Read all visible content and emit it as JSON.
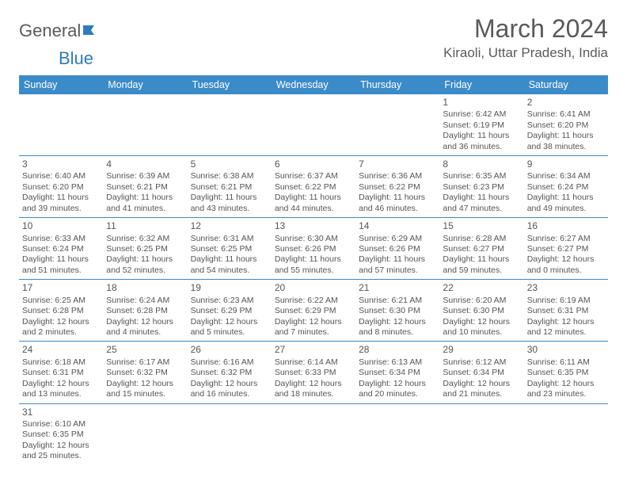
{
  "logo": {
    "text1": "General",
    "text2": "Blue"
  },
  "header": {
    "month": "March 2024",
    "location": "Kiraoli, Uttar Pradesh, India"
  },
  "colors": {
    "header_bg": "#3b8bc9",
    "header_fg": "#ffffff",
    "rule": "#3b8bc9",
    "text": "#555555",
    "logo_blue": "#2f7bbf"
  },
  "days_of_week": [
    "Sunday",
    "Monday",
    "Tuesday",
    "Wednesday",
    "Thursday",
    "Friday",
    "Saturday"
  ],
  "cells": [
    [
      null,
      null,
      null,
      null,
      null,
      {
        "n": "1",
        "sr": "6:42 AM",
        "ss": "6:19 PM",
        "dl": "11 hours and 36 minutes."
      },
      {
        "n": "2",
        "sr": "6:41 AM",
        "ss": "6:20 PM",
        "dl": "11 hours and 38 minutes."
      }
    ],
    [
      {
        "n": "3",
        "sr": "6:40 AM",
        "ss": "6:20 PM",
        "dl": "11 hours and 39 minutes."
      },
      {
        "n": "4",
        "sr": "6:39 AM",
        "ss": "6:21 PM",
        "dl": "11 hours and 41 minutes."
      },
      {
        "n": "5",
        "sr": "6:38 AM",
        "ss": "6:21 PM",
        "dl": "11 hours and 43 minutes."
      },
      {
        "n": "6",
        "sr": "6:37 AM",
        "ss": "6:22 PM",
        "dl": "11 hours and 44 minutes."
      },
      {
        "n": "7",
        "sr": "6:36 AM",
        "ss": "6:22 PM",
        "dl": "11 hours and 46 minutes."
      },
      {
        "n": "8",
        "sr": "6:35 AM",
        "ss": "6:23 PM",
        "dl": "11 hours and 47 minutes."
      },
      {
        "n": "9",
        "sr": "6:34 AM",
        "ss": "6:24 PM",
        "dl": "11 hours and 49 minutes."
      }
    ],
    [
      {
        "n": "10",
        "sr": "6:33 AM",
        "ss": "6:24 PM",
        "dl": "11 hours and 51 minutes."
      },
      {
        "n": "11",
        "sr": "6:32 AM",
        "ss": "6:25 PM",
        "dl": "11 hours and 52 minutes."
      },
      {
        "n": "12",
        "sr": "6:31 AM",
        "ss": "6:25 PM",
        "dl": "11 hours and 54 minutes."
      },
      {
        "n": "13",
        "sr": "6:30 AM",
        "ss": "6:26 PM",
        "dl": "11 hours and 55 minutes."
      },
      {
        "n": "14",
        "sr": "6:29 AM",
        "ss": "6:26 PM",
        "dl": "11 hours and 57 minutes."
      },
      {
        "n": "15",
        "sr": "6:28 AM",
        "ss": "6:27 PM",
        "dl": "11 hours and 59 minutes."
      },
      {
        "n": "16",
        "sr": "6:27 AM",
        "ss": "6:27 PM",
        "dl": "12 hours and 0 minutes."
      }
    ],
    [
      {
        "n": "17",
        "sr": "6:25 AM",
        "ss": "6:28 PM",
        "dl": "12 hours and 2 minutes."
      },
      {
        "n": "18",
        "sr": "6:24 AM",
        "ss": "6:28 PM",
        "dl": "12 hours and 4 minutes."
      },
      {
        "n": "19",
        "sr": "6:23 AM",
        "ss": "6:29 PM",
        "dl": "12 hours and 5 minutes."
      },
      {
        "n": "20",
        "sr": "6:22 AM",
        "ss": "6:29 PM",
        "dl": "12 hours and 7 minutes."
      },
      {
        "n": "21",
        "sr": "6:21 AM",
        "ss": "6:30 PM",
        "dl": "12 hours and 8 minutes."
      },
      {
        "n": "22",
        "sr": "6:20 AM",
        "ss": "6:30 PM",
        "dl": "12 hours and 10 minutes."
      },
      {
        "n": "23",
        "sr": "6:19 AM",
        "ss": "6:31 PM",
        "dl": "12 hours and 12 minutes."
      }
    ],
    [
      {
        "n": "24",
        "sr": "6:18 AM",
        "ss": "6:31 PM",
        "dl": "12 hours and 13 minutes."
      },
      {
        "n": "25",
        "sr": "6:17 AM",
        "ss": "6:32 PM",
        "dl": "12 hours and 15 minutes."
      },
      {
        "n": "26",
        "sr": "6:16 AM",
        "ss": "6:32 PM",
        "dl": "12 hours and 16 minutes."
      },
      {
        "n": "27",
        "sr": "6:14 AM",
        "ss": "6:33 PM",
        "dl": "12 hours and 18 minutes."
      },
      {
        "n": "28",
        "sr": "6:13 AM",
        "ss": "6:34 PM",
        "dl": "12 hours and 20 minutes."
      },
      {
        "n": "29",
        "sr": "6:12 AM",
        "ss": "6:34 PM",
        "dl": "12 hours and 21 minutes."
      },
      {
        "n": "30",
        "sr": "6:11 AM",
        "ss": "6:35 PM",
        "dl": "12 hours and 23 minutes."
      }
    ],
    [
      {
        "n": "31",
        "sr": "6:10 AM",
        "ss": "6:35 PM",
        "dl": "12 hours and 25 minutes."
      },
      null,
      null,
      null,
      null,
      null,
      null
    ]
  ],
  "labels": {
    "sunrise": "Sunrise: ",
    "sunset": "Sunset: ",
    "daylight": "Daylight: "
  }
}
